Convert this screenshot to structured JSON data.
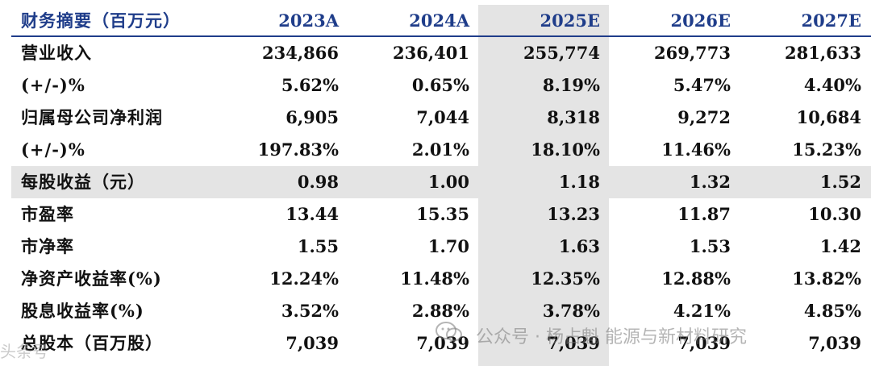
{
  "header": {
    "label": "财务摘要（百万元）",
    "years": [
      "2023A",
      "2024A",
      "2025E",
      "2026E",
      "2027E"
    ]
  },
  "rows": [
    {
      "label": "营业收入",
      "values": [
        "234,866",
        "236,401",
        "255,774",
        "269,773",
        "281,633"
      ]
    },
    {
      "label": "(+/-)%",
      "values": [
        "5.62%",
        "0.65%",
        "8.19%",
        "5.47%",
        "4.40%"
      ]
    },
    {
      "label": "归属母公司净利润",
      "values": [
        "6,905",
        "7,044",
        "8,318",
        "9,272",
        "10,684"
      ]
    },
    {
      "label": "(+/-)%",
      "values": [
        "197.83%",
        "2.01%",
        "18.10%",
        "11.46%",
        "15.23%"
      ]
    },
    {
      "label": "每股收益（元）",
      "values": [
        "0.98",
        "1.00",
        "1.18",
        "1.32",
        "1.52"
      ]
    },
    {
      "label": "市盈率",
      "values": [
        "13.44",
        "15.35",
        "13.23",
        "11.87",
        "10.30"
      ]
    },
    {
      "label": "市净率",
      "values": [
        "1.55",
        "1.70",
        "1.63",
        "1.53",
        "1.42"
      ]
    },
    {
      "label": "净资产收益率(%)",
      "values": [
        "12.24%",
        "11.48%",
        "12.35%",
        "12.88%",
        "13.82%"
      ]
    },
    {
      "label": "股息收益率(%)",
      "values": [
        "3.52%",
        "2.88%",
        "3.78%",
        "4.21%",
        "4.85%"
      ]
    },
    {
      "label": "总股本（百万股）",
      "values": [
        "7,039",
        "7,039",
        "7,039",
        "7,039",
        "7,039"
      ]
    }
  ],
  "watermark": {
    "text": "公众号 · 杨占魁 能源与新材料研究",
    "icon": "wechat-icon",
    "left_text": "头条号"
  },
  "colors": {
    "header_text": "#1f3d8a",
    "highlight": "#e4e4e4"
  }
}
